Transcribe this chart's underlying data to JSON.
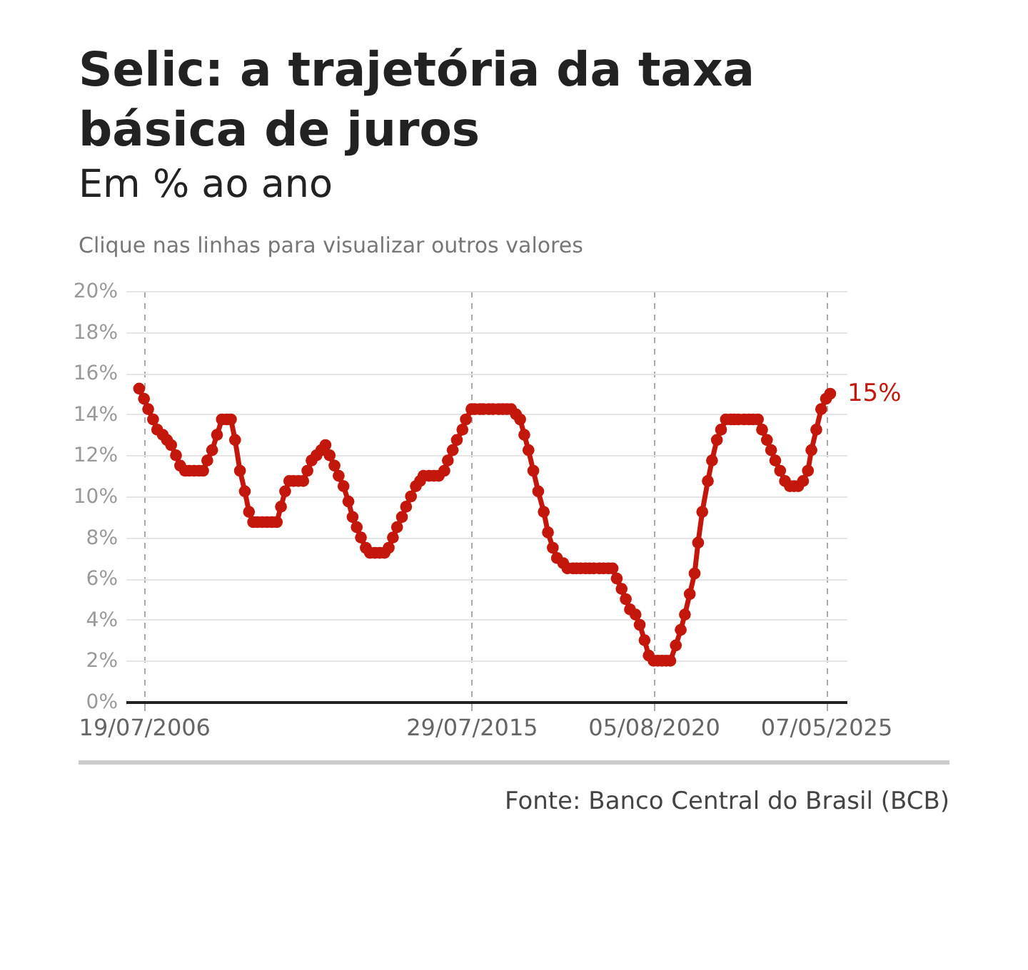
{
  "chart_data": {
    "type": "line",
    "title": "Selic: a trajetória da taxa básica de juros",
    "subtitle": "Em % ao ano",
    "annotations": [
      "Clique nas linhas para visualizar outros valores",
      "Fonte: Banco Central do Brasil (BCB)"
    ],
    "x": [
      "2006-05-31",
      "2006-07-19",
      "2006-08-30",
      "2006-10-18",
      "2006-11-29",
      "2007-01-24",
      "2007-03-07",
      "2007-04-18",
      "2007-06-06",
      "2007-07-18",
      "2007-09-05",
      "2007-10-17",
      "2007-12-05",
      "2008-01-23",
      "2008-03-05",
      "2008-04-16",
      "2008-06-04",
      "2008-07-23",
      "2008-09-10",
      "2008-10-29",
      "2008-12-10",
      "2009-01-21",
      "2009-03-11",
      "2009-04-29",
      "2009-06-10",
      "2009-07-22",
      "2009-09-02",
      "2009-10-21",
      "2009-12-09",
      "2010-01-27",
      "2010-03-17",
      "2010-04-28",
      "2010-06-09",
      "2010-07-21",
      "2010-09-01",
      "2010-10-20",
      "2010-12-08",
      "2011-01-19",
      "2011-03-02",
      "2011-04-20",
      "2011-06-08",
      "2011-07-20",
      "2011-08-31",
      "2011-10-19",
      "2011-11-30",
      "2012-01-18",
      "2012-03-07",
      "2012-04-18",
      "2012-05-30",
      "2012-07-11",
      "2012-08-29",
      "2012-10-10",
      "2012-11-28",
      "2013-01-16",
      "2013-03-06",
      "2013-04-17",
      "2013-05-29",
      "2013-07-10",
      "2013-08-28",
      "2013-10-09",
      "2013-11-27",
      "2014-01-15",
      "2014-02-26",
      "2014-04-02",
      "2014-05-28",
      "2014-07-16",
      "2014-09-03",
      "2014-10-29",
      "2014-12-03",
      "2015-01-21",
      "2015-03-04",
      "2015-04-29",
      "2015-06-03",
      "2015-07-29",
      "2015-09-02",
      "2015-10-21",
      "2015-11-25",
      "2016-01-20",
      "2016-03-02",
      "2016-04-27",
      "2016-06-08",
      "2016-07-20",
      "2016-08-31",
      "2016-10-19",
      "2016-11-30",
      "2017-01-11",
      "2017-02-22",
      "2017-04-12",
      "2017-05-31",
      "2017-07-26",
      "2017-09-06",
      "2017-10-25",
      "2017-12-06",
      "2018-02-07",
      "2018-03-21",
      "2018-05-16",
      "2018-06-20",
      "2018-08-01",
      "2018-09-19",
      "2018-10-31",
      "2018-12-12",
      "2019-02-06",
      "2019-03-20",
      "2019-05-08",
      "2019-06-19",
      "2019-07-31",
      "2019-09-18",
      "2019-10-30",
      "2019-12-11",
      "2020-02-05",
      "2020-03-18",
      "2020-05-06",
      "2020-06-17",
      "2020-08-05",
      "2020-09-16",
      "2020-10-28",
      "2020-12-09",
      "2021-01-20",
      "2021-03-17",
      "2021-05-05",
      "2021-06-16",
      "2021-08-04",
      "2021-09-22",
      "2021-10-27",
      "2021-12-08",
      "2022-02-02",
      "2022-03-16",
      "2022-05-04",
      "2022-06-15",
      "2022-08-03",
      "2022-09-21",
      "2022-10-26",
      "2022-12-07",
      "2023-02-01",
      "2023-03-22",
      "2023-05-03",
      "2023-06-21",
      "2023-08-02",
      "2023-09-20",
      "2023-11-01",
      "2023-12-13",
      "2024-01-31",
      "2024-03-20",
      "2024-05-08",
      "2024-06-19",
      "2024-07-31",
      "2024-09-18",
      "2024-11-06",
      "2024-12-11",
      "2025-01-29",
      "2025-03-19",
      "2025-05-07",
      "2025-06-18"
    ],
    "series": [
      {
        "color": "#c4170c",
        "values": [
          15.25,
          14.75,
          14.25,
          13.75,
          13.25,
          13.0,
          12.75,
          12.5,
          12.0,
          11.5,
          11.25,
          11.25,
          11.25,
          11.25,
          11.25,
          11.75,
          12.25,
          13.0,
          13.75,
          13.75,
          13.75,
          12.75,
          11.25,
          10.25,
          9.25,
          8.75,
          8.75,
          8.75,
          8.75,
          8.75,
          8.75,
          9.5,
          10.25,
          10.75,
          10.75,
          10.75,
          10.75,
          11.25,
          11.75,
          12.0,
          12.25,
          12.5,
          12.0,
          11.5,
          11.0,
          10.5,
          9.75,
          9.0,
          8.5,
          8.0,
          7.5,
          7.25,
          7.25,
          7.25,
          7.25,
          7.5,
          8.0,
          8.5,
          9.0,
          9.5,
          10.0,
          10.5,
          10.75,
          11.0,
          11.0,
          11.0,
          11.0,
          11.25,
          11.75,
          12.25,
          12.75,
          13.25,
          13.75,
          14.25,
          14.25,
          14.25,
          14.25,
          14.25,
          14.25,
          14.25,
          14.25,
          14.25,
          14.25,
          14.0,
          13.75,
          13.0,
          12.25,
          11.25,
          10.25,
          9.25,
          8.25,
          7.5,
          7.0,
          6.75,
          6.5,
          6.5,
          6.5,
          6.5,
          6.5,
          6.5,
          6.5,
          6.5,
          6.5,
          6.5,
          6.5,
          6.0,
          5.5,
          5.0,
          4.5,
          4.25,
          3.75,
          3.0,
          2.25,
          2.0,
          2.0,
          2.0,
          2.0,
          2.0,
          2.75,
          3.5,
          4.25,
          5.25,
          6.25,
          7.75,
          9.25,
          10.75,
          11.75,
          12.75,
          13.25,
          13.75,
          13.75,
          13.75,
          13.75,
          13.75,
          13.75,
          13.75,
          13.75,
          13.25,
          12.75,
          12.25,
          11.75,
          11.25,
          10.75,
          10.5,
          10.5,
          10.5,
          10.75,
          11.25,
          12.25,
          13.25,
          14.25,
          14.75,
          15.0
        ],
        "value_labels": [
          null,
          null,
          null,
          null,
          null,
          null,
          null,
          null,
          null,
          null,
          null,
          null,
          null,
          null,
          null,
          null,
          null,
          null,
          null,
          null,
          null,
          null,
          null,
          null,
          null,
          null,
          null,
          null,
          null,
          null,
          null,
          null,
          null,
          null,
          null,
          null,
          null,
          null,
          null,
          null,
          null,
          null,
          null,
          null,
          null,
          null,
          null,
          null,
          null,
          null,
          null,
          null,
          null,
          null,
          null,
          null,
          null,
          null,
          null,
          null,
          null,
          null,
          null,
          null,
          null,
          null,
          null,
          null,
          null,
          null,
          null,
          null,
          null,
          null,
          null,
          null,
          null,
          null,
          null,
          null,
          null,
          null,
          null,
          null,
          null,
          null,
          null,
          null,
          null,
          null,
          null,
          null,
          null,
          null,
          null,
          null,
          null,
          null,
          null,
          null,
          null,
          null,
          null,
          null,
          null,
          null,
          null,
          null,
          null,
          null,
          null,
          null,
          null,
          null,
          null,
          null,
          null,
          null,
          null,
          null,
          null,
          null,
          null,
          null,
          null,
          null,
          null,
          null,
          null,
          null,
          null,
          null,
          null,
          null,
          null,
          null,
          null,
          null,
          null,
          null,
          null,
          null,
          null,
          null,
          null,
          null,
          null,
          null,
          null,
          null,
          null,
          null,
          "15%"
        ]
      }
    ],
    "xlim": [
      "2006-01-15",
      "2025-12-01"
    ],
    "xticks": [
      {
        "value": "2006-07-19",
        "label": "19/07/2006"
      },
      {
        "value": "2015-07-29",
        "label": "29/07/2015"
      },
      {
        "value": "2020-08-05",
        "label": "05/08/2020"
      },
      {
        "value": "2025-05-07",
        "label": "07/05/2025"
      }
    ],
    "ylim": [
      0,
      20
    ],
    "yticks": [
      {
        "value": 0,
        "label": "0%"
      },
      {
        "value": 2,
        "label": "2%"
      },
      {
        "value": 4,
        "label": "4%"
      },
      {
        "value": 6,
        "label": "6%"
      },
      {
        "value": 8,
        "label": "8%"
      },
      {
        "value": 10,
        "label": "10%"
      },
      {
        "value": 12,
        "label": "12%"
      },
      {
        "value": 14,
        "label": "14%"
      },
      {
        "value": 16,
        "label": "16%"
      },
      {
        "value": 18,
        "label": "18%"
      },
      {
        "value": 20,
        "label": "20%"
      }
    ],
    "grid": true,
    "marker": "circle",
    "line_style": "solid"
  }
}
